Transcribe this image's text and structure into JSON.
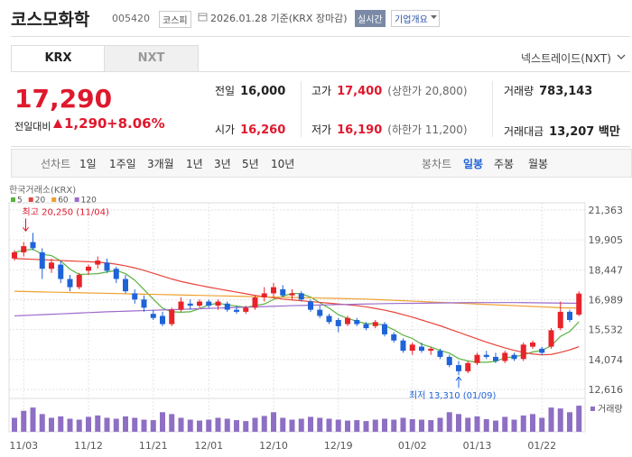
{
  "header": {
    "name": "코스모화학",
    "code": "005420",
    "market": "코스피",
    "date": "2026.01.28 기준(KRX 장마감)",
    "realtime": "실시간",
    "overview": "기업개요"
  },
  "tabs": [
    "KRX",
    "NXT"
  ],
  "nxt_link": "넥스트레이드(NXT)",
  "price": {
    "current": "17,290",
    "change_label": "전일대비",
    "change": "1,290",
    "change_rate": "+8.06%"
  },
  "stats": [
    [
      {
        "label": "전일",
        "value": "16,000"
      },
      {
        "label": "고가",
        "value": "17,400",
        "note": "(상한가 20,800)",
        "color": "#e0182d"
      },
      {
        "label": "거래량",
        "value": "783,143"
      }
    ],
    [
      {
        "label": "시가",
        "value": "16,260",
        "color": "#e0182d"
      },
      {
        "label": "저가",
        "value": "16,190",
        "note": "(하한가 11,200)",
        "color": "#e0182d"
      },
      {
        "label": "거래대금",
        "value": "13,207 백만"
      }
    ]
  ],
  "line_chart_buttons": {
    "label": "선차트",
    "items": [
      "1일",
      "1주일",
      "3개월",
      "1년",
      "3년",
      "5년",
      "10년"
    ]
  },
  "candle_chart_buttons": {
    "label": "봉차트",
    "items": [
      "일봉",
      "주봉",
      "월봉"
    ],
    "selected": 0
  },
  "chart_data": {
    "type": "candlestick",
    "title": "한국거래소(KRX)",
    "categories": [
      null,
      "11/03",
      null,
      null,
      null,
      null,
      null,
      null,
      "11/12",
      null,
      null,
      null,
      null,
      null,
      null,
      "11/21",
      null,
      null,
      null,
      null,
      null,
      "12/01",
      null,
      null,
      null,
      null,
      null,
      null,
      "12/10",
      null,
      null,
      null,
      null,
      null,
      null,
      "12/19",
      null,
      null,
      null,
      null,
      null,
      null,
      null,
      "01/02",
      null,
      null,
      null,
      null,
      null,
      null,
      "01/13",
      null,
      null,
      null,
      null,
      null,
      null,
      "01/22",
      null,
      null,
      null,
      null
    ],
    "open": [
      19000,
      19300,
      19800,
      19300,
      18500,
      18700,
      18000,
      17600,
      18400,
      18700,
      18800,
      18500,
      18000,
      17300,
      17000,
      16300,
      16200,
      15800,
      16500,
      16800,
      16700,
      16900,
      16700,
      16800,
      16500,
      16400,
      16600,
      17100,
      17300,
      17500,
      17200,
      17300,
      16900,
      16500,
      16200,
      16000,
      15800,
      16000,
      15800,
      15700,
      15800,
      15300,
      15000,
      14500,
      14700,
      14500,
      14500,
      14200,
      13800,
      13500,
      13900,
      14300,
      14200,
      14000,
      14300,
      14100,
      14700,
      14600,
      14700,
      15600,
      16400,
      16260
    ],
    "high": [
      19400,
      19800,
      20250,
      19500,
      19000,
      18900,
      18200,
      18300,
      18700,
      19100,
      19000,
      18600,
      18200,
      17500,
      17200,
      16500,
      16400,
      16600,
      17100,
      17000,
      17000,
      17000,
      17000,
      16900,
      16700,
      16700,
      17200,
      17600,
      17800,
      17700,
      17500,
      17400,
      17000,
      16700,
      16300,
      16100,
      16200,
      16100,
      15900,
      16000,
      15900,
      15400,
      15100,
      14900,
      14900,
      14700,
      14600,
      14300,
      14000,
      14000,
      14400,
      14500,
      14400,
      14500,
      14400,
      14900,
      15000,
      14700,
      15600,
      16900,
      16500,
      17400
    ],
    "low": [
      18900,
      19100,
      19400,
      18000,
      18300,
      17800,
      17400,
      17500,
      18200,
      18500,
      18300,
      17800,
      17300,
      16800,
      16400,
      16000,
      15700,
      15700,
      16400,
      16500,
      16600,
      16600,
      16500,
      16400,
      16300,
      16300,
      16500,
      16900,
      17100,
      17100,
      17000,
      16900,
      16400,
      16100,
      15800,
      15400,
      15700,
      15700,
      15500,
      15600,
      15200,
      14900,
      14400,
      14300,
      14400,
      14300,
      14100,
      13700,
      13310,
      13400,
      13800,
      14100,
      13900,
      13900,
      14000,
      14000,
      14600,
      14300,
      14600,
      15500,
      15900,
      16190
    ],
    "close": [
      19300,
      19600,
      19500,
      18500,
      18800,
      18000,
      17600,
      18200,
      18600,
      18900,
      18400,
      18000,
      17400,
      17000,
      16600,
      16100,
      15800,
      16500,
      16900,
      16700,
      16900,
      16700,
      16900,
      16500,
      16400,
      16600,
      17100,
      17300,
      17600,
      17200,
      17300,
      17000,
      16500,
      16200,
      15900,
      15700,
      16100,
      15800,
      15600,
      15900,
      15300,
      15000,
      14500,
      14800,
      14500,
      14600,
      14200,
      13800,
      13500,
      13900,
      14300,
      14200,
      14000,
      14400,
      14100,
      14800,
      14900,
      14400,
      15500,
      16400,
      16000,
      17290
    ],
    "up_color": "#e8232a",
    "down_color": "#1f63d8",
    "series": [
      {
        "name": "5",
        "color": "#5ab23f",
        "values": [
          19300,
          19400,
          19450,
          19200,
          19140,
          18880,
          18480,
          18220,
          18240,
          18260,
          18340,
          18420,
          18260,
          17940,
          17480,
          17020,
          16580,
          16400,
          16380,
          16400,
          16560,
          16740,
          16820,
          16740,
          16680,
          16620,
          16700,
          16780,
          17000,
          17160,
          17300,
          17280,
          17120,
          16840,
          16580,
          16260,
          16080,
          15940,
          15820,
          15820,
          15740,
          15520,
          15260,
          15100,
          14820,
          14680,
          14520,
          14380,
          14120,
          14000,
          13940,
          13940,
          13980,
          14160,
          14200,
          14300,
          14440,
          14520,
          14740,
          15200,
          15440,
          15918
        ]
      },
      {
        "name": "20",
        "color": "#e8443a",
        "values": [
          19000,
          18980,
          18960,
          18940,
          18920,
          18900,
          18880,
          18860,
          18840,
          18820,
          18780,
          18720,
          18640,
          18540,
          18420,
          18280,
          18140,
          18000,
          17880,
          17780,
          17690,
          17600,
          17520,
          17440,
          17360,
          17280,
          17200,
          17140,
          17080,
          17020,
          16980,
          16940,
          16900,
          16860,
          16820,
          16780,
          16740,
          16700,
          16640,
          16560,
          16480,
          16380,
          16260,
          16140,
          16000,
          15860,
          15720,
          15560,
          15400,
          15240,
          15080,
          14920,
          14780,
          14640,
          14520,
          14420,
          14340,
          14300,
          14320,
          14420,
          14540,
          14700
        ]
      },
      {
        "name": "60",
        "color": "#f0a030",
        "values": [
          17400,
          17390,
          17380,
          17370,
          17360,
          17350,
          17340,
          17330,
          17320,
          17310,
          17300,
          17290,
          17280,
          17270,
          17260,
          17250,
          17240,
          17230,
          17220,
          17210,
          17200,
          17190,
          17180,
          17170,
          17160,
          17150,
          17140,
          17130,
          17120,
          17110,
          17100,
          17090,
          17080,
          17070,
          17060,
          17050,
          17040,
          17030,
          17020,
          17000,
          16980,
          16960,
          16940,
          16920,
          16900,
          16880,
          16860,
          16840,
          16820,
          16800,
          16780,
          16760,
          16740,
          16720,
          16700,
          16680,
          16660,
          16640,
          16620,
          16600,
          16590,
          16580
        ]
      },
      {
        "name": "120",
        "color": "#9b6ccc",
        "values": [
          16200,
          16220,
          16240,
          16260,
          16280,
          16300,
          16320,
          16340,
          16360,
          16380,
          16400,
          16415,
          16430,
          16445,
          16460,
          16475,
          16490,
          16505,
          16520,
          16535,
          16550,
          16565,
          16580,
          16595,
          16610,
          16625,
          16640,
          16655,
          16670,
          16685,
          16700,
          16710,
          16720,
          16730,
          16740,
          16750,
          16760,
          16770,
          16780,
          16790,
          16800,
          16805,
          16810,
          16815,
          16820,
          16825,
          16830,
          16835,
          16840,
          16845,
          16850,
          16850,
          16850,
          16850,
          16850,
          16845,
          16840,
          16835,
          16830,
          16825,
          16820,
          16815
        ]
      }
    ],
    "ylim": [
      12264,
      21715
    ],
    "yticks": [
      {
        "value": 21363,
        "label": "21,363"
      },
      {
        "value": 19905,
        "label": "19,905"
      },
      {
        "value": 18447,
        "label": "18,447"
      },
      {
        "value": 16989,
        "label": "16,989"
      },
      {
        "value": 15532,
        "label": "15,532"
      },
      {
        "value": 14074,
        "label": "14,074"
      },
      {
        "value": 12616,
        "label": "12,616"
      }
    ],
    "grid": true,
    "high_label": "최고 20,250 (11/04)",
    "low_label": "최저 13,310 (01/09)",
    "volume": {
      "label": "거래량",
      "color": "#8e6fc4",
      "ylim": [
        0,
        600
      ],
      "values": [
        300,
        450,
        520,
        380,
        300,
        330,
        280,
        260,
        320,
        350,
        300,
        280,
        330,
        300,
        260,
        250,
        420,
        380,
        300,
        260,
        240,
        260,
        300,
        280,
        250,
        230,
        300,
        340,
        420,
        300,
        260,
        280,
        320,
        300,
        280,
        260,
        240,
        250,
        230,
        260,
        280,
        260,
        300,
        270,
        260,
        250,
        300,
        420,
        380,
        300,
        330,
        270,
        240,
        320,
        260,
        350,
        380,
        300,
        520,
        500,
        420,
        560
      ]
    }
  }
}
